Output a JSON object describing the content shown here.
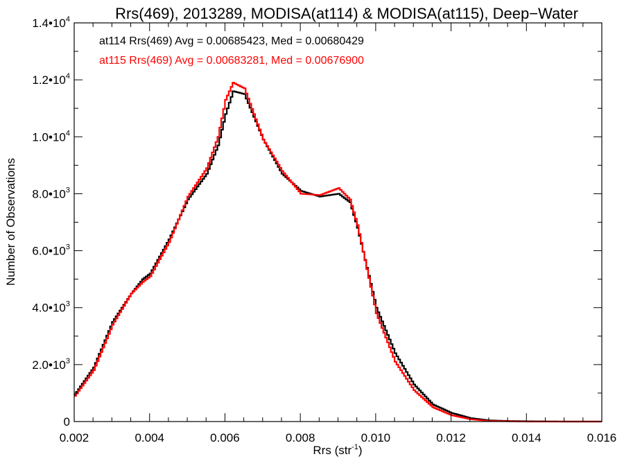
{
  "chart_data": {
    "type": "line",
    "step": true,
    "title": "Rrs(469), 2013289, MODISA(at114) & MODISA(at115), Deep−Water",
    "xlabel": "Rrs (str",
    "xlabel_sup": "-1",
    "xlabel_suffix": ")",
    "ylabel": "Number of Observations",
    "xlim": [
      0.002,
      0.016
    ],
    "ylim": [
      0,
      14000
    ],
    "x_ticks": [
      {
        "value": 0.002,
        "label": "0.002"
      },
      {
        "value": 0.004,
        "label": "0.004"
      },
      {
        "value": 0.006,
        "label": "0.006"
      },
      {
        "value": 0.008,
        "label": "0.008"
      },
      {
        "value": 0.01,
        "label": "0.010"
      },
      {
        "value": 0.012,
        "label": "0.012"
      },
      {
        "value": 0.014,
        "label": "0.014"
      },
      {
        "value": 0.016,
        "label": "0.016"
      }
    ],
    "y_ticks": [
      {
        "value": 0,
        "label": "0",
        "exp": ""
      },
      {
        "value": 2000,
        "label": "2.0•10",
        "exp": "3"
      },
      {
        "value": 4000,
        "label": "4.0•10",
        "exp": "3"
      },
      {
        "value": 6000,
        "label": "6.0•10",
        "exp": "3"
      },
      {
        "value": 8000,
        "label": "8.0•10",
        "exp": "3"
      },
      {
        "value": 10000,
        "label": "1.0•10",
        "exp": "4"
      },
      {
        "value": 12000,
        "label": "1.2•10",
        "exp": "4"
      },
      {
        "value": 14000,
        "label": "1.4•10",
        "exp": "4"
      }
    ],
    "annotations": [
      {
        "text": "at114 Rrs(469) Avg = 0.00685423, Med = 0.00680429",
        "color": "#000000"
      },
      {
        "text": "at115 Rrs(469) Avg = 0.00683281, Med = 0.00676900",
        "color": "#ff0000"
      }
    ],
    "x": [
      0.002,
      0.0025,
      0.003,
      0.0035,
      0.0038,
      0.004,
      0.0045,
      0.005,
      0.0055,
      0.0058,
      0.006,
      0.0062,
      0.0065,
      0.007,
      0.0075,
      0.008,
      0.0085,
      0.009,
      0.0093,
      0.0095,
      0.01,
      0.0105,
      0.011,
      0.0115,
      0.012,
      0.0125,
      0.013,
      0.0135,
      0.014,
      0.015,
      0.016
    ],
    "series": [
      {
        "name": "at114",
        "color": "#000000",
        "values": [
          950,
          1900,
          3500,
          4500,
          5000,
          5200,
          6400,
          7800,
          8700,
          9700,
          10800,
          11600,
          11500,
          9900,
          8700,
          8100,
          7900,
          8000,
          7700,
          6800,
          4000,
          2400,
          1300,
          600,
          300,
          120,
          40,
          20,
          10,
          0,
          0
        ]
      },
      {
        "name": "at115",
        "color": "#ff0000",
        "values": [
          900,
          1800,
          3400,
          4500,
          4900,
          5100,
          6300,
          7900,
          8900,
          10000,
          11300,
          11900,
          11700,
          9900,
          8800,
          8000,
          7950,
          8200,
          7800,
          6900,
          3800,
          2100,
          1100,
          500,
          220,
          80,
          20,
          10,
          0,
          0,
          0
        ]
      }
    ],
    "grid": false
  }
}
